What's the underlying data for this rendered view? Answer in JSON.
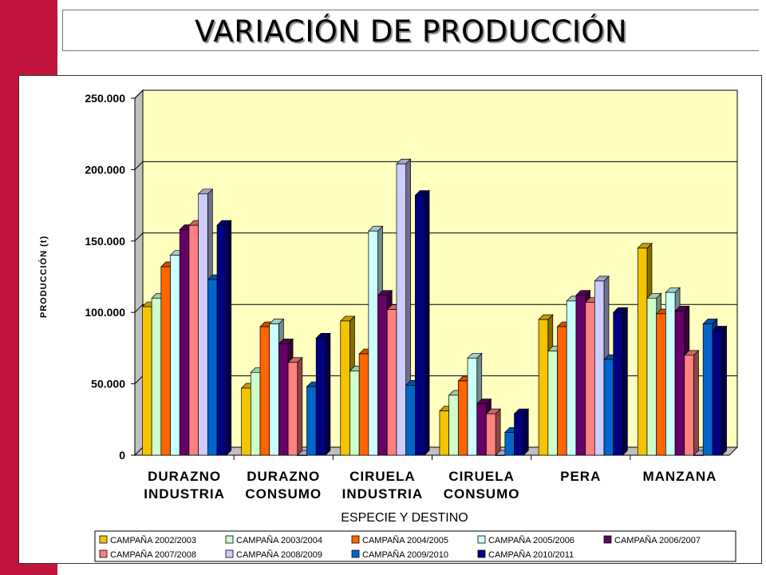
{
  "page": {
    "title": "VARIACIÓN DE PRODUCCIÓN",
    "accent_color": "#c0143c"
  },
  "chart_data": {
    "type": "bar",
    "title": "",
    "xlabel": "ESPECIE Y DESTINO",
    "ylabel": "PRODUCCIÓN (t)",
    "ylim": [
      0,
      250000
    ],
    "yticks": [
      0,
      50000,
      100000,
      150000,
      200000,
      250000
    ],
    "ytick_labels": [
      "0",
      "50.000",
      "100.000",
      "150.000",
      "200.000",
      "250.000"
    ],
    "grid": true,
    "plot_background": "#ffffc0",
    "legend_position": "bottom",
    "categories": [
      [
        "DURAZNO",
        "INDUSTRIA"
      ],
      [
        "DURAZNO",
        "CONSUMO"
      ],
      [
        "CIRUELA",
        "INDUSTRIA"
      ],
      [
        "CIRUELA",
        "CONSUMO"
      ],
      [
        "PERA"
      ],
      [
        "MANZANA"
      ]
    ],
    "series": [
      {
        "name": "CAMPAÑA 2002/2003",
        "color": "#f5c400",
        "values": [
          104000,
          47000,
          94000,
          31000,
          95000,
          145000
        ]
      },
      {
        "name": "CAMPAÑA 2003/2004",
        "color": "#ccffcc",
        "values": [
          110000,
          58000,
          59000,
          42000,
          73000,
          110000
        ]
      },
      {
        "name": "CAMPAÑA 2004/2005",
        "color": "#ff6600",
        "values": [
          132000,
          90000,
          71000,
          52000,
          90000,
          99000
        ]
      },
      {
        "name": "CAMPAÑA 2005/2006",
        "color": "#ccffff",
        "values": [
          140000,
          92000,
          157000,
          68000,
          108000,
          114000
        ]
      },
      {
        "name": "CAMPAÑA 2006/2007",
        "color": "#660066",
        "values": [
          158000,
          78000,
          112000,
          36000,
          112000,
          101000
        ]
      },
      {
        "name": "CAMPAÑA 2007/2008",
        "color": "#ff8080",
        "values": [
          161000,
          65000,
          102000,
          29000,
          107000,
          70000
        ]
      },
      {
        "name": "CAMPAÑA 2008/2009",
        "color": "#ccccff",
        "values": [
          183000,
          0,
          204000,
          0,
          122000,
          0
        ]
      },
      {
        "name": "CAMPAÑA 2009/2010",
        "color": "#0066cc",
        "values": [
          123000,
          48000,
          49000,
          16000,
          67000,
          92000
        ]
      },
      {
        "name": "CAMPAÑA 2010/2011",
        "color": "#000080",
        "values": [
          161000,
          82000,
          182000,
          29000,
          100000,
          87000
        ]
      }
    ]
  }
}
